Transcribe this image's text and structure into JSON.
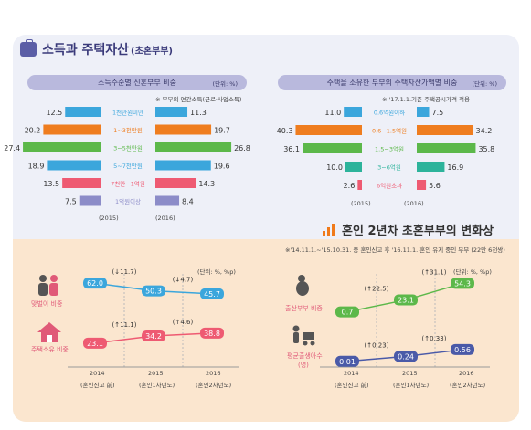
{
  "section1": {
    "title_main": "소득과 주택자산",
    "title_sub": "(초혼부부)",
    "income": {
      "header": "소득수준별 신혼부부 비중",
      "unit": "(단위: %)",
      "note": "※ 부부의 연간소득(근로·사업소득)",
      "years": [
        "(2015)",
        "(2016)"
      ]
    },
    "asset": {
      "header": "주택을 소유한 부부의 주택자산가액별 비중",
      "unit": "(단위: %)",
      "note": "※ '17.1.1.기준 주택공시가격 적용",
      "years": [
        "(2015)",
        "(2016)"
      ]
    }
  },
  "section2": {
    "title": "혼인 2년차 초혼부부의 변화상",
    "note": "※'14.11.1.~'15.10.31. 중 혼인신고 후 '16.11.1. 혼인 유지 중인 부부 (22만 6천쌍)",
    "unit_left": "(단위: %, %p)",
    "unit_right": "(단위: %, %p)",
    "years": [
      "2014",
      "2015",
      "2016"
    ],
    "year_subs": [
      "(혼인신고 前)",
      "(혼인1차년도)",
      "(혼인2차년도)"
    ],
    "labels": {
      "dual": "맞벌이 비중",
      "house": "주택소유 비중",
      "birth": "출산부부 비중",
      "avgkids": "평균출생아수",
      "avgkids_unit": "(명)"
    }
  },
  "colors": {
    "blue": "#3ba6dc",
    "orange": "#ef7d1f",
    "green": "#5cb84a",
    "teal": "#2db39b",
    "pink": "#ee5a72",
    "purple": "#8c8cc8",
    "navy": "#4a5aa8"
  },
  "chart_data": [
    {
      "type": "bar",
      "title": "소득수준별 신혼부부 비중",
      "categories": [
        "1천만원미만",
        "1~3천만원",
        "3~5천만원",
        "5~7천만원",
        "7천만~1억원",
        "1억원이상"
      ],
      "series": [
        {
          "name": "(2015)",
          "values": [
            12.5,
            20.2,
            27.4,
            18.9,
            13.5,
            7.5
          ]
        },
        {
          "name": "(2016)",
          "values": [
            11.3,
            19.7,
            26.8,
            19.6,
            14.3,
            8.4
          ]
        }
      ],
      "value_labels_2015": [
        "12.5",
        "20.2",
        "27.4",
        "18.9",
        "13.5",
        "7.5"
      ],
      "value_labels_2016": [
        "11.3",
        "19.7",
        "26.8",
        "19.6",
        "14.3",
        "8.4"
      ],
      "ylabel": "%"
    },
    {
      "type": "bar",
      "title": "주택을 소유한 부부의 주택자산가액별 비중",
      "categories": [
        "0.6억원이하",
        "0.6~1.5억원",
        "1.5~3억원",
        "3~6억원",
        "6억원초과"
      ],
      "series": [
        {
          "name": "(2015)",
          "values": [
            11.0,
            40.3,
            36.1,
            10.0,
            2.6
          ]
        },
        {
          "name": "(2016)",
          "values": [
            7.5,
            34.2,
            35.8,
            16.9,
            5.6
          ]
        }
      ],
      "value_labels_2015": [
        "11.0",
        "40.3",
        "36.1",
        "10.0",
        "2.6"
      ],
      "value_labels_2016": [
        "7.5",
        "34.2",
        "35.8",
        "16.9",
        "5.6"
      ],
      "ylabel": "%"
    },
    {
      "type": "line",
      "x": [
        "2014",
        "2015",
        "2016"
      ],
      "series": [
        {
          "name": "맞벌이 비중",
          "values": [
            62.0,
            50.3,
            45.7
          ],
          "labels": [
            "62.0",
            "50.3",
            "45.7"
          ],
          "changes": [
            "(↓11.7)",
            "(↓4.7)"
          ]
        },
        {
          "name": "주택소유 비중",
          "values": [
            23.1,
            34.2,
            38.8
          ],
          "labels": [
            "23.1",
            "34.2",
            "38.8"
          ],
          "changes": [
            "(↑11.1)",
            "(↑4.6)"
          ]
        },
        {
          "name": "출산부부 비중",
          "values": [
            0.7,
            23.1,
            54.3
          ],
          "labels": [
            "0.7",
            "23.1",
            "54.3"
          ],
          "changes": [
            "(↑22.5)",
            "(↑31.1)"
          ]
        },
        {
          "name": "평균출생아수",
          "values": [
            0.01,
            0.24,
            0.56
          ],
          "labels": [
            "0.01",
            "0.24",
            "0.56"
          ],
          "changes": [
            "(↑0.23)",
            "(↑0.33)"
          ]
        }
      ]
    }
  ]
}
